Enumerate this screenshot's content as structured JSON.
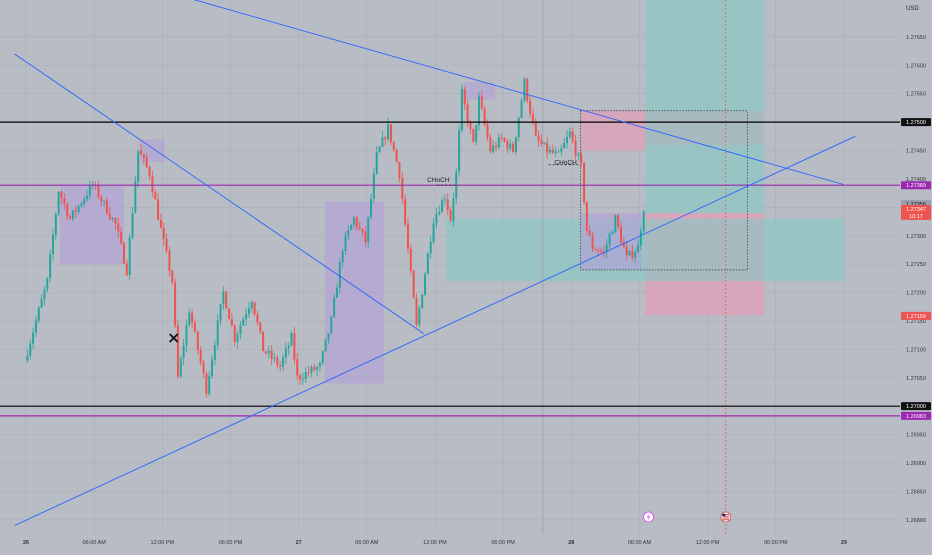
{
  "currency": "USD",
  "colors": {
    "background": "#b8bcc4",
    "up": "#26a69a",
    "down": "#ef5350",
    "trendline": "#2962ff",
    "level": "#000000",
    "magenta": "#9c27b0",
    "zone": "#b39ddb",
    "target": "#80cbc4",
    "stop": "#f48fb1"
  },
  "chart_data": {
    "type": "candlestick",
    "symbol_hint": "GBPUSD",
    "price_axis": {
      "ylim": [
        1.26775,
        1.27715
      ],
      "ticks": [
        "1.27650",
        "1.27600",
        "1.27550",
        "1.27500",
        "1.27450",
        "1.27400",
        "1.27350",
        "1.27300",
        "1.27250",
        "1.27200",
        "1.27150",
        "1.27100",
        "1.27050",
        "1.27000",
        "1.26950",
        "1.26900",
        "1.26850",
        "1.26800"
      ],
      "tick_values": [
        1.2765,
        1.276,
        1.2755,
        1.275,
        1.2745,
        1.274,
        1.2735,
        1.273,
        1.2725,
        1.272,
        1.2715,
        1.271,
        1.2705,
        1.27,
        1.2695,
        1.269,
        1.2685,
        1.268
      ]
    },
    "time_axis": {
      "labels": [
        "26",
        "06:00 AM",
        "12:00 PM",
        "06:00 PM",
        "27",
        "06:00 AM",
        "12:00 PM",
        "06:00 PM",
        "28",
        "06:00 AM",
        "12:00 PM",
        "06:00 PM",
        "29"
      ],
      "positions_h": [
        0,
        6,
        12,
        18,
        24,
        30,
        36,
        42,
        48,
        54,
        60,
        66,
        72
      ],
      "bars_per_hour": 4,
      "bold_labels": [
        "26",
        "27",
        "28",
        "29"
      ]
    },
    "price_labels": [
      {
        "text": "1.27500",
        "value": 1.275,
        "style": "black"
      },
      {
        "text": "1.27389",
        "value": 1.27389,
        "style": "magenta"
      },
      {
        "text": "1.27356",
        "value": 1.27356,
        "style": "gray"
      },
      {
        "text": "1.27347",
        "value": 1.27347,
        "style": "red"
      },
      {
        "text": "10:17",
        "value": 1.27335,
        "style": "red"
      },
      {
        "text": "1.27159",
        "value": 1.27159,
        "style": "red"
      },
      {
        "text": "1.27000",
        "value": 1.27,
        "style": "black"
      },
      {
        "text": "1.26983",
        "value": 1.26983,
        "style": "magenta"
      }
    ],
    "horizontal_levels": [
      {
        "value": 1.275,
        "color": "black"
      },
      {
        "value": 1.27389,
        "color": "magenta"
      },
      {
        "value": 1.27,
        "color": "black"
      },
      {
        "value": 1.26983,
        "color": "magenta"
      }
    ],
    "annotations": [
      {
        "text": "CHoCH",
        "t_h": 36.3,
        "price": 1.27395
      },
      {
        "text": "CHoCH",
        "t_h": 47.5,
        "price": 1.27425
      }
    ],
    "trendlines": [
      {
        "t1_h": -1,
        "p1": 1.2762,
        "t2_h": 35,
        "p2": 1.27128
      },
      {
        "t1_h": -1,
        "p1": 1.2679,
        "t2_h": 73,
        "p2": 1.27475
      },
      {
        "t1_h": 14,
        "p1": 1.2772,
        "t2_h": 72,
        "p2": 1.2739
      }
    ],
    "zones": [
      {
        "t1_h": 3,
        "t2_h": 8.6,
        "p1": 1.2725,
        "p2": 1.2739,
        "kind": "zone"
      },
      {
        "t1_h": 10,
        "t2_h": 12.2,
        "p1": 1.2743,
        "p2": 1.2747,
        "kind": "zone"
      },
      {
        "t1_h": 26.3,
        "t2_h": 31.5,
        "p1": 1.2704,
        "p2": 1.2736,
        "kind": "zone"
      },
      {
        "t1_h": 38.5,
        "t2_h": 41.3,
        "p1": 1.2754,
        "p2": 1.2757,
        "kind": "zone"
      },
      {
        "t1_h": 48.8,
        "t2_h": 54.5,
        "p1": 1.2745,
        "p2": 1.2752,
        "kind": "stop"
      },
      {
        "t1_h": 54.5,
        "t2_h": 65,
        "p1": 1.2746,
        "p2": 1.2752,
        "kind": "stop"
      },
      {
        "t1_h": 54.5,
        "t2_h": 65,
        "p1": 1.2716,
        "p2": 1.2734,
        "kind": "stop"
      },
      {
        "t1_h": 37,
        "t2_h": 72,
        "p1": 1.2722,
        "p2": 1.2733,
        "kind": "target"
      },
      {
        "t1_h": 54.5,
        "t2_h": 65,
        "p1": 1.2734,
        "p2": 1.2772,
        "kind": "target"
      },
      {
        "t1_h": 48.8,
        "t2_h": 54.2,
        "p1": 1.2724,
        "p2": 1.2734,
        "kind": "zone"
      }
    ],
    "dotted_boxes": [
      {
        "t1_h": 48.8,
        "t2_h": 63.5,
        "p1": 1.2724,
        "p2": 1.2752
      }
    ],
    "dashed_segments": [
      {
        "t1_h": 36.2,
        "t2_h": 37.8,
        "price": 1.27389
      },
      {
        "t1_h": 46,
        "t2_h": 48.8,
        "price": 1.27425
      }
    ],
    "markers": [
      {
        "shape": "x",
        "t_h": 13,
        "price": 1.2712
      }
    ],
    "vertical_lines": [
      {
        "t_h": 61.6,
        "color": "red",
        "style": "dotted"
      },
      {
        "t_h": 45.5,
        "color": "gray",
        "style": "solid"
      }
    ],
    "event_icons": [
      {
        "kind": "lightning",
        "t_h": 54.8,
        "price": 1.26805
      },
      {
        "kind": "flag-us",
        "t_h": 61.6,
        "price": 1.26805
      }
    ],
    "price_path": [
      [
        0,
        1.2708
      ],
      [
        2,
        1.2722
      ],
      [
        3,
        1.2738
      ],
      [
        4,
        1.2733
      ],
      [
        6,
        1.2739
      ],
      [
        8,
        1.2732
      ],
      [
        9,
        1.2724
      ],
      [
        10,
        1.2745
      ],
      [
        11,
        1.2741
      ],
      [
        12,
        1.2731
      ],
      [
        13,
        1.2722
      ],
      [
        13.5,
        1.2705
      ],
      [
        14.5,
        1.2717
      ],
      [
        16,
        1.2703
      ],
      [
        17.5,
        1.272
      ],
      [
        18.5,
        1.2712
      ],
      [
        20,
        1.2719
      ],
      [
        21,
        1.271
      ],
      [
        22.5,
        1.2707
      ],
      [
        23.5,
        1.2712
      ],
      [
        24,
        1.2705
      ],
      [
        26,
        1.2707
      ],
      [
        27,
        1.2715
      ],
      [
        28,
        1.2728
      ],
      [
        29,
        1.2733
      ],
      [
        30,
        1.2729
      ],
      [
        31,
        1.2744
      ],
      [
        32,
        1.2749
      ],
      [
        33,
        1.2741
      ],
      [
        34,
        1.2723
      ],
      [
        34.5,
        1.2714
      ],
      [
        36,
        1.2733
      ],
      [
        37,
        1.2737
      ],
      [
        37.5,
        1.2733
      ],
      [
        38,
        1.2741
      ],
      [
        38.5,
        1.2755
      ],
      [
        39.5,
        1.2746
      ],
      [
        40,
        1.2754
      ],
      [
        41,
        1.2745
      ],
      [
        42,
        1.2747
      ],
      [
        43,
        1.2745
      ],
      [
        44,
        1.2757
      ],
      [
        45,
        1.2747
      ],
      [
        46,
        1.2745
      ],
      [
        47,
        1.2744
      ],
      [
        48,
        1.2748
      ],
      [
        49,
        1.2742
      ],
      [
        49.5,
        1.2731
      ],
      [
        50,
        1.2728
      ],
      [
        51,
        1.2727
      ],
      [
        52,
        1.2733
      ],
      [
        53,
        1.2726
      ],
      [
        54,
        1.2728
      ],
      [
        54.5,
        1.2735
      ]
    ]
  }
}
